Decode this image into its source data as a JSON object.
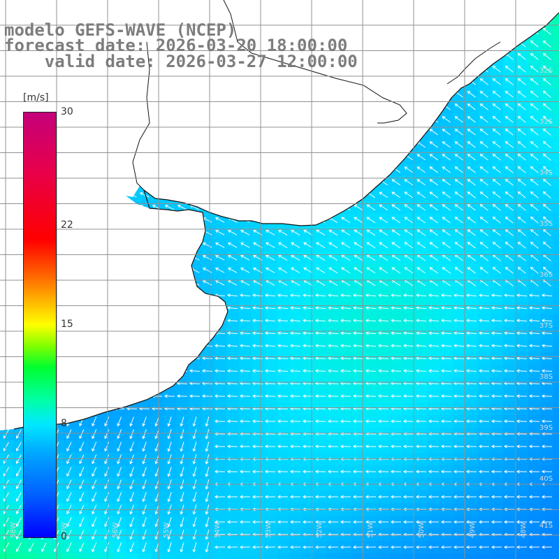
{
  "header": {
    "title": "modelo GEFS-WAVE (NCEP)",
    "forecast_date": "forecast date: 2026-03-20 18:00:00",
    "valid_date": "    valid date: 2026-03-27 12:00:00"
  },
  "legend": {
    "units": "[m/s]",
    "min": 0,
    "max": 30,
    "ticks": [
      {
        "label": "30",
        "value": 30
      },
      {
        "label": "22",
        "value": 22
      },
      {
        "label": "15",
        "value": 15
      },
      {
        "label": "8",
        "value": 8
      },
      {
        "label": "0",
        "value": 0
      }
    ],
    "gradient_colors": [
      "#0000ff",
      "#0060ff",
      "#00a8ff",
      "#00e8ff",
      "#00ffaa",
      "#00ff30",
      "#7fff00",
      "#ffff00",
      "#ffb000",
      "#ff6000",
      "#ff0000",
      "#c4007a"
    ]
  },
  "map": {
    "lat_labels": [
      "32S",
      "33S",
      "34S",
      "35S",
      "36S",
      "37S",
      "38S",
      "39S",
      "40S",
      "41S"
    ],
    "lon_labels": [
      "58W",
      "57W",
      "56W",
      "55W",
      "54W",
      "53W",
      "52W",
      "51W",
      "50W",
      "49W",
      "48W"
    ],
    "colors": {
      "land": "#ffffff",
      "coastline": "#111111",
      "grid": "#909090",
      "arrow": "#ffffff",
      "title": "#7d7d7d"
    }
  }
}
